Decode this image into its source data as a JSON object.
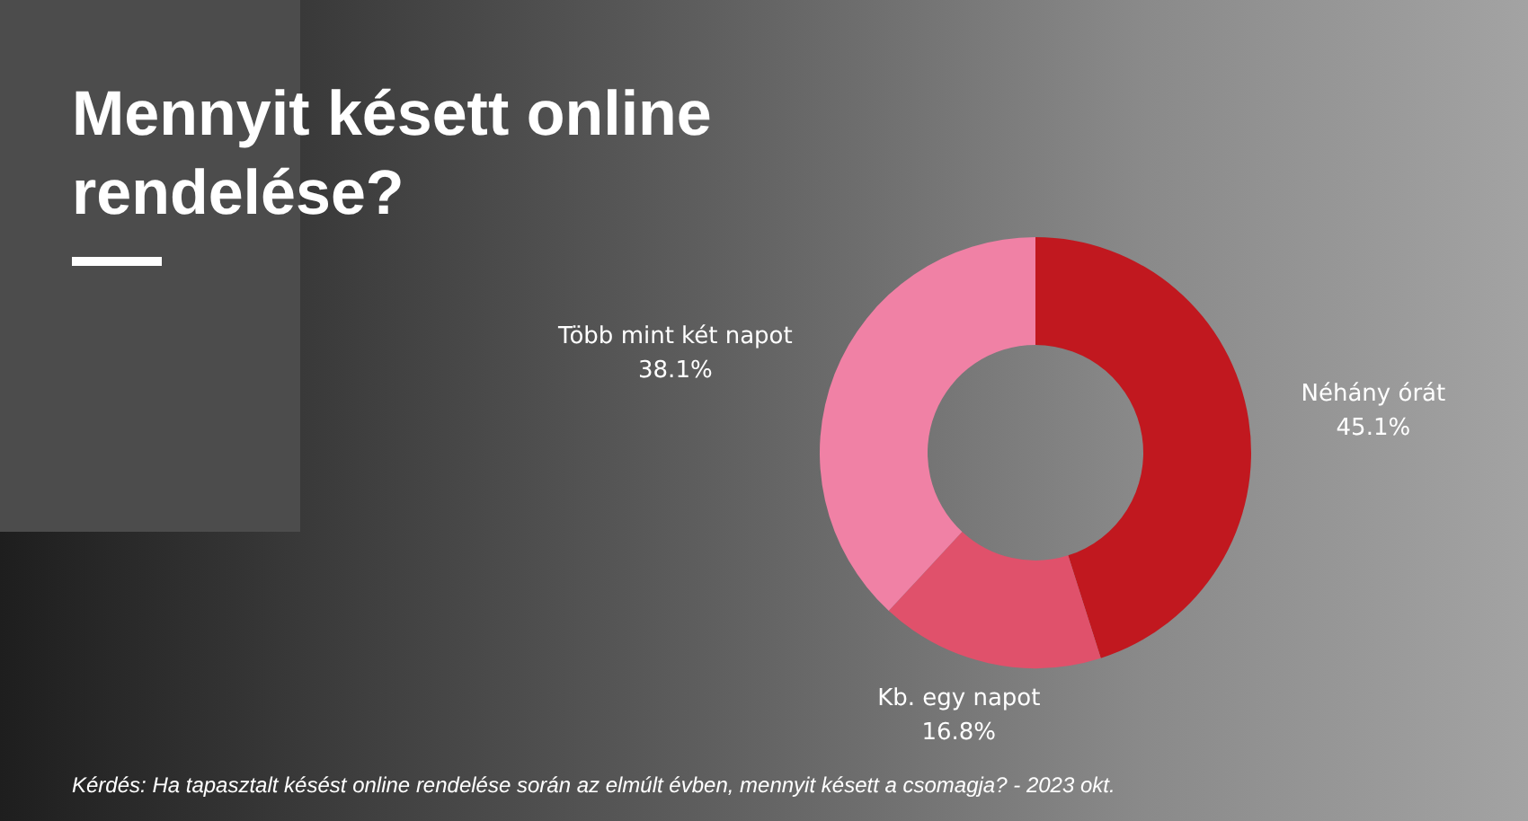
{
  "chart_data": {
    "type": "donut",
    "title": "Mennyit késett online rendelése?",
    "categories": [
      "Néhány órát",
      "Kb. egy napot",
      "Több mint két napot"
    ],
    "values": [
      45.1,
      16.8,
      38.1
    ],
    "value_labels": [
      "45.1%",
      "16.8%",
      "38.1%"
    ],
    "colors": [
      "#c1181f",
      "#e0516b",
      "#f081a5"
    ],
    "legend": false,
    "annotations": [
      "Kérdés: Ha tapasztalt késést online rendelése során az elmúlt évben, mennyit késett a csomagja?  - 2023 okt."
    ]
  }
}
